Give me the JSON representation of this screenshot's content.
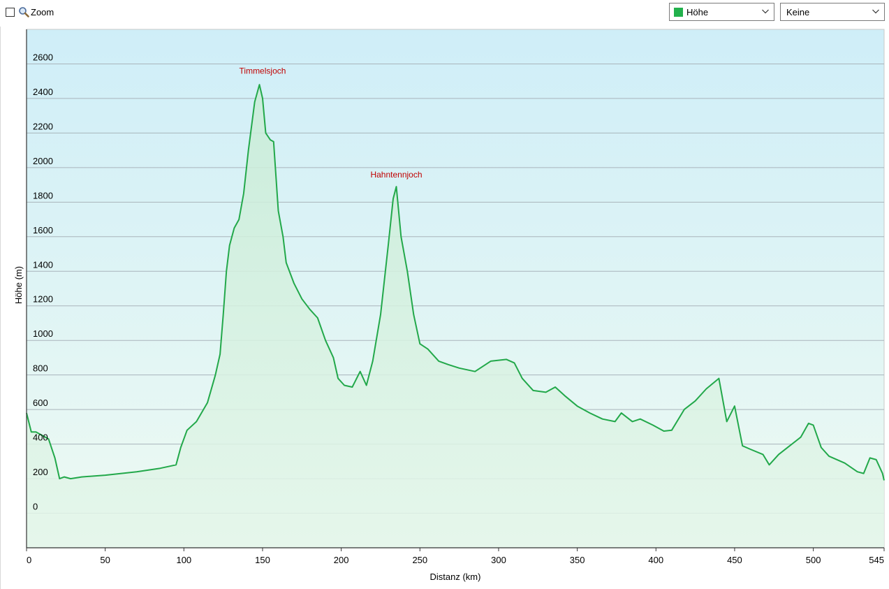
{
  "toolbar": {
    "zoom_label": "Zoom",
    "zoom_checked": false,
    "series_select": {
      "value": "Höhe",
      "swatch_color": "#22b14c"
    },
    "overlay_select": {
      "value": "Keine"
    }
  },
  "chart_data": {
    "type": "area",
    "title": "",
    "xlabel": "Distanz  (km)",
    "ylabel": "Höhe (m)",
    "xlim": [
      0,
      545
    ],
    "ylim": [
      -200,
      2800
    ],
    "x_ticks": [
      "0",
      "50",
      "100",
      "150",
      "200",
      "250",
      "300",
      "350",
      "400",
      "450",
      "500",
      "545"
    ],
    "y_ticks": [
      "0",
      "200",
      "400",
      "600",
      "800",
      "1000",
      "1200",
      "1400",
      "1600",
      "1800",
      "2000",
      "2200",
      "2400",
      "2600"
    ],
    "grid": true,
    "line_color": "#22a84a",
    "series": [
      {
        "x": [
          0,
          3,
          6,
          10,
          14,
          18,
          21,
          24,
          28,
          35,
          50,
          70,
          85,
          95,
          98,
          102,
          108,
          115,
          120,
          123,
          125,
          127,
          129,
          132,
          135,
          138,
          141,
          145,
          148,
          150,
          152,
          155,
          157,
          160,
          163,
          165,
          170,
          175,
          180,
          185,
          190,
          195,
          198,
          202,
          207,
          212,
          216,
          220,
          225,
          230,
          233,
          235,
          238,
          242,
          246,
          250,
          255,
          262,
          268,
          275,
          285,
          295,
          305,
          310,
          315,
          322,
          330,
          336,
          342,
          350,
          358,
          366,
          374,
          378,
          385,
          390,
          398,
          405,
          410,
          418,
          425,
          432,
          440,
          445,
          450,
          455,
          460,
          468,
          472,
          478,
          485,
          492,
          497,
          500,
          505,
          510,
          520,
          528,
          532,
          536,
          540,
          544,
          545
        ],
        "y": [
          580,
          470,
          470,
          450,
          430,
          320,
          200,
          210,
          200,
          210,
          220,
          240,
          260,
          280,
          380,
          480,
          530,
          640,
          800,
          920,
          1150,
          1400,
          1550,
          1650,
          1700,
          1850,
          2100,
          2380,
          2480,
          2400,
          2200,
          2160,
          2150,
          1750,
          1600,
          1450,
          1330,
          1240,
          1180,
          1130,
          1000,
          900,
          780,
          740,
          730,
          820,
          740,
          880,
          1150,
          1560,
          1820,
          1890,
          1600,
          1400,
          1150,
          980,
          950,
          880,
          860,
          840,
          820,
          880,
          890,
          870,
          780,
          710,
          700,
          730,
          680,
          620,
          580,
          545,
          530,
          580,
          530,
          545,
          510,
          475,
          480,
          600,
          650,
          720,
          780,
          530,
          620,
          390,
          370,
          340,
          280,
          340,
          390,
          440,
          520,
          510,
          380,
          330,
          290,
          240,
          230,
          320,
          310,
          230,
          190
        ]
      }
    ],
    "annotations": [
      {
        "label": "Timmelsjoch",
        "x": 150,
        "y": 2510
      },
      {
        "label": "Hahntennjoch",
        "x": 235,
        "y": 1910
      }
    ]
  }
}
